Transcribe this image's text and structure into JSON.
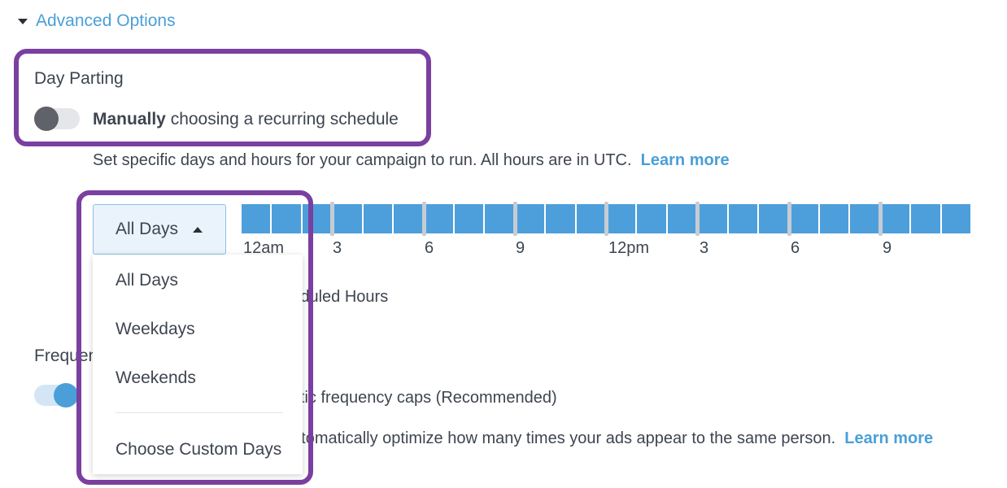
{
  "advanced": {
    "title": "Advanced Options"
  },
  "day_parting": {
    "label": "Day Parting",
    "toggle_bold": "Manually",
    "toggle_rest": " choosing a recurring schedule",
    "description": "Set specific days and hours for your campaign to run. All hours are in UTC.",
    "learn_more": "Learn more"
  },
  "dropdown": {
    "selected": "All Days",
    "options": [
      "All Days",
      "Weekdays",
      "Weekends",
      "Choose Custom Days"
    ]
  },
  "hours": {
    "labels": [
      "12am",
      "3",
      "6",
      "9",
      "12pm",
      "3",
      "6",
      "9"
    ]
  },
  "scheduled": {
    "text": "All Scheduled Hours"
  },
  "frequency": {
    "label": "Frequency",
    "toggle_text": "Automatic frequency caps (Recommended)",
    "description": "We'll automatically optimize how many times your ads appear to the same person.",
    "learn_more": "Learn more"
  },
  "colors": {
    "accent": "#4a9fd8",
    "highlight": "#7b3fa0",
    "hour_fill": "#4d9fdb"
  }
}
